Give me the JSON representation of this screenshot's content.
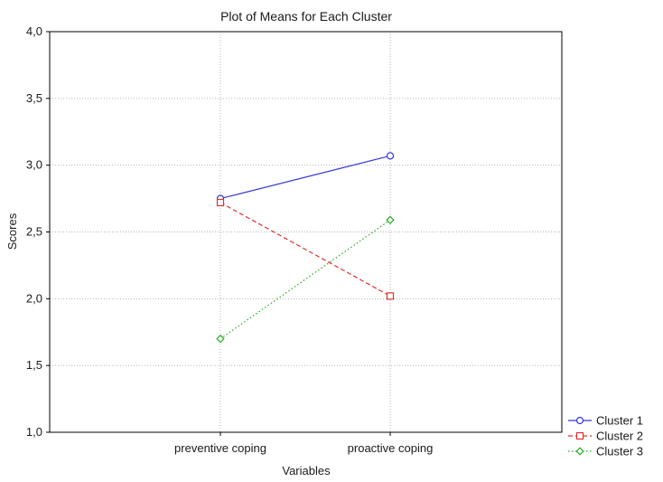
{
  "chart_data": {
    "type": "line",
    "title": "Plot of Means for Each Cluster",
    "xlabel": "Variables",
    "ylabel": "Scores",
    "categories": [
      "preventive coping",
      "proactive coping"
    ],
    "ylim": [
      1.0,
      4.0
    ],
    "yticks": [
      "1,0",
      "1,5",
      "2,0",
      "2,5",
      "3,0",
      "3,5",
      "4,0"
    ],
    "ytick_values": [
      1.0,
      1.5,
      2.0,
      2.5,
      3.0,
      3.5,
      4.0
    ],
    "grid": true,
    "legend_position": "bottom-right, outside plot",
    "series": [
      {
        "name": "Cluster  1",
        "values": [
          2.75,
          3.07
        ],
        "color": "#3333dd",
        "line_style": "solid",
        "marker": "circle"
      },
      {
        "name": "Cluster  2",
        "values": [
          2.72,
          2.02
        ],
        "color": "#e03030",
        "line_style": "dashed",
        "marker": "square"
      },
      {
        "name": "Cluster  3",
        "values": [
          1.7,
          2.59
        ],
        "color": "#22aa22",
        "line_style": "dotted",
        "marker": "diamond"
      }
    ]
  }
}
